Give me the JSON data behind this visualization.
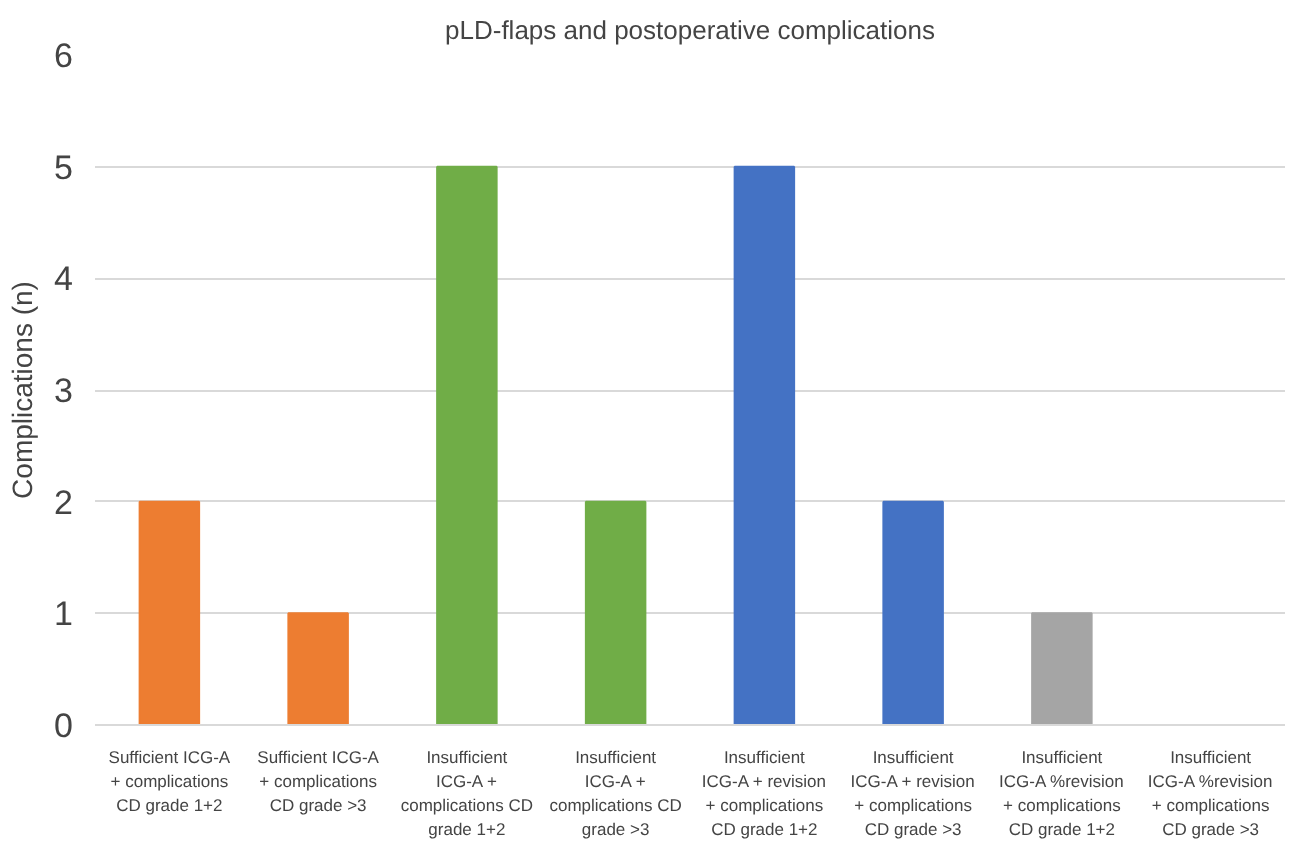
{
  "chart_data": {
    "type": "bar",
    "title": "pLD-flaps and postoperative complications",
    "ylabel": "Complications (n)",
    "categories": [
      "Sufficient ICG-A + complications CD grade 1+2",
      "Sufficient ICG-A + complications CD grade >3",
      "Insufficient ICG-A + complications CD grade 1+2",
      "Insufficient ICG-A + complications CD grade >3",
      "Insufficient ICG-A + revision + complications CD grade 1+2",
      "Insufficient ICG-A + revision + complications CD grade >3",
      "Insufficient ICG-A %revision + complications CD grade 1+2",
      "Insufficient ICG-A %revision + complications CD grade >3"
    ],
    "values": [
      2,
      1,
      5,
      2,
      5,
      2,
      1,
      0
    ],
    "colors": [
      "#ed7d31",
      "#ed7d31",
      "#70ad47",
      "#70ad47",
      "#4472c4",
      "#4472c4",
      "#a5a5a5",
      "#a5a5a5"
    ],
    "ylim": [
      0,
      6
    ],
    "yticks": [
      0,
      1,
      2,
      3,
      4,
      5,
      6
    ],
    "grid": "y"
  }
}
